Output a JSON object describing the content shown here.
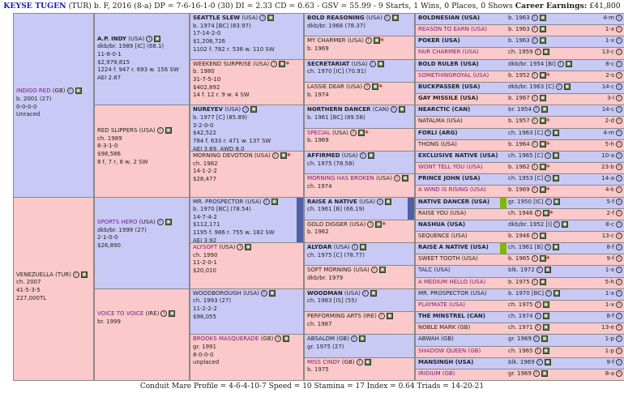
{
  "header": {
    "name": "KEYSE TUGEN",
    "info": "(TUR) b. F, 2016 (8-a) DP = 7-6-16-1-0 (30) DI = 2.33   CD = 0.63 - GSV = 55.99 - 9 Starts, 1 Wins, 0 Places, 0 Shows",
    "earnings_label": "Career Earnings:",
    "earnings": "£41,800"
  },
  "footer": {
    "text": "Conduit Mare Profile = 4-6-4-10-7   Speed = 10   Stamina = 17   Index = 0.64   Triads = 14-20-21"
  },
  "colors": {
    "male": "#c9c9f6",
    "female": "#fbc9c9",
    "accent_green": "#7fb800",
    "accent_blue": "#4f5fa8"
  },
  "icons": [
    "info-icon",
    "chart-icon"
  ],
  "gen1": [
    {
      "name": "INDIGO RED",
      "suf": "(GB)",
      "lines": [
        "b. 2001 (27)",
        "0-0-0-0",
        "Unraced"
      ],
      "style": "ds"
    },
    {
      "name": "VENEZUELLA (TUR)",
      "suf": "",
      "lines": [
        "ch. 2007",
        "41-5-3-5",
        "227,000TL"
      ],
      "style": "plain"
    }
  ],
  "gen2": [
    {
      "name": "A.P. INDY",
      "suf": "(USA)",
      "lines": [
        "dkb/br. 1989 [IC] (68.1)",
        "11-8-0-1",
        "$2,979,815",
        "1224 f. 947 r. 693 w. 156 SW",
        "AEI 2.87"
      ],
      "style": "st"
    },
    {
      "name": "RED SLIPPERS",
      "suf": "(USA)",
      "lines": [
        "ch. 1989",
        "8-3-1-0",
        "$98,586",
        "8 f, 7 r, 6 w, 2 SW"
      ],
      "style": "plain"
    },
    {
      "name": "SPORTS HERO",
      "suf": "(USA)",
      "lines": [
        "dkb/br. 1999 (27)",
        "2-1-0-0",
        "$26,890"
      ],
      "style": "ds"
    },
    {
      "name": "VOICE TO VOICE",
      "suf": "(IRE)",
      "lines": [
        "br. 1999"
      ],
      "style": "ds"
    }
  ],
  "gen3": [
    {
      "name": "SEATTLE SLEW",
      "suf": "(USA)",
      "lines": [
        "b. 1974 [BC] (83.97)",
        "17-14-2-0",
        "$1,208,726",
        "1102 f. 782 r. 536 w. 110 SW"
      ],
      "style": "st"
    },
    {
      "name": "WEEKEND SURPRISE",
      "suf": "(USA)",
      "lines": [
        "b. 1980",
        "31-7-5-10",
        "$402,892",
        "14 f. 12 r. 9 w. 4 SW"
      ],
      "style": "plain"
    },
    {
      "name": "NUREYEV",
      "suf": "(USA)",
      "lines": [
        "b. 1977 [C] (85.89)",
        "3-2-0-0",
        "$42,522",
        "784 f. 633 r. 471 w. 137 SW",
        "AEI 3.69, AWD 8.0"
      ],
      "style": "st"
    },
    {
      "name": "MORNING DEVOTION",
      "suf": "(USA)",
      "lines": [
        "ch. 1982",
        "14-1-2-2",
        "$28,477"
      ],
      "style": "plain"
    },
    {
      "name": "MR. PROSPECTOR",
      "suf": "(USA)",
      "lines": [
        "b. 1970 [BC] (78.54)",
        "14-7-4-2",
        "$112,171",
        "1195 f. 986 r. 755 w. 182 SW",
        "AEI 3.92"
      ],
      "style": "plain"
    },
    {
      "name": "ALYSOFT",
      "suf": "(USA)",
      "lines": [
        "ch. 1990",
        "11-2-0-1",
        "$20,010"
      ],
      "style": "ds"
    },
    {
      "name": "WOODBOROUGH",
      "suf": "(USA)",
      "lines": [
        "ch. 1993 (27)",
        "11-2-2-2",
        "$98,055"
      ],
      "style": "plain"
    },
    {
      "name": "BROOKS MASQUERADE",
      "suf": "(GB)",
      "lines": [
        "gr. 1991",
        "8-0-0-0",
        "unplaced"
      ],
      "style": "ds"
    }
  ],
  "gen4": [
    {
      "name": "BOLD REASONING",
      "suf": "(USA)",
      "line": "dkb/br. 1968 (78.37)",
      "style": "st"
    },
    {
      "name": "MY CHARMER",
      "suf": "(USA)",
      "line": "b. 1969",
      "style": "plain"
    },
    {
      "name": "SECRETARIAT",
      "suf": "(USA)",
      "line": "ch. 1970 [IC] (70.91)",
      "style": "st"
    },
    {
      "name": "LASSIE DEAR",
      "suf": "(USA)",
      "line": "b. 1974",
      "style": "plain"
    },
    {
      "name": "NORTHERN DANCER",
      "suf": "(CAN)",
      "line": "b. 1961 [BC] (89.58)",
      "style": "st"
    },
    {
      "name": "SPECIAL",
      "suf": "(USA)",
      "line": "b. 1969",
      "style": "ds"
    },
    {
      "name": "AFFIRMED",
      "suf": "(USA)",
      "line": "ch. 1975 (78.58)",
      "style": "st"
    },
    {
      "name": "MORNING HAS BROKEN",
      "suf": "(USA)",
      "line": "ch. 1974",
      "style": "ds"
    },
    {
      "name": "RAISE A NATIVE",
      "suf": "(USA)",
      "line": "ch. 1961 [B] (66.19)",
      "style": "st"
    },
    {
      "name": "GOLD DIGGER",
      "suf": "(USA)",
      "line": "b. 1962",
      "style": "plain"
    },
    {
      "name": "ALYDAR",
      "suf": "(USA)",
      "line": "ch. 1975 [C] (78.77)",
      "style": "st"
    },
    {
      "name": "SOFT MORNING",
      "suf": "(USA)",
      "line": "dkb/br. 1979",
      "style": "plain"
    },
    {
      "name": "WOODMAN",
      "suf": "(USA)",
      "line": "ch. 1983 [IS] (55)",
      "style": "st"
    },
    {
      "name": "PERFORMING ARTS",
      "suf": "(IRE)",
      "line": "ch. 1987",
      "style": "plain"
    },
    {
      "name": "ABSALOM",
      "suf": "(GB)",
      "line": "gr. 1975 (27)",
      "style": "plain"
    },
    {
      "name": "MISS CINDY",
      "suf": "(GB)",
      "line": "b. 1975",
      "style": "ds"
    }
  ],
  "gen5": [
    {
      "name": "BOLDNESIAN (USA)",
      "style": "st",
      "desc": "b. 1963",
      "rec": "4-m"
    },
    {
      "name": "REASON TO EARN (USA)",
      "style": "ds",
      "desc": "b. 1963",
      "rec": "1-x"
    },
    {
      "name": "POKER (USA)",
      "style": "st",
      "desc": "b. 1963",
      "rec": "1-x"
    },
    {
      "name": "FAIR CHARMER (USA)",
      "style": "ds",
      "desc": "ch. 1959",
      "rec": "13-c"
    },
    {
      "name": "BOLD RULER (USA)",
      "style": "st",
      "desc": "dkb/br. 1954 [BI]",
      "rec": "8-c"
    },
    {
      "name": "SOMETHINGROYAL (USA)",
      "style": "ds",
      "desc": "b. 1952",
      "rec": "2-s"
    },
    {
      "name": "BUCKPASSER (USA)",
      "style": "st",
      "desc": "dkb/br. 1963 [C]",
      "rec": "14-c"
    },
    {
      "name": "GAY MISSILE (USA)",
      "style": "st",
      "desc": "b. 1967",
      "rec": "3-l"
    },
    {
      "name": "NEARCTIC (CAN)",
      "style": "st",
      "desc": "br. 1954",
      "rec": "14-c"
    },
    {
      "name": "NATALMA (USA)",
      "style": "plain",
      "desc": "b. 1957",
      "rec": "2-d"
    },
    {
      "name": "FORLI (ARG)",
      "style": "st",
      "desc": "ch. 1963 [C]",
      "rec": "4-m"
    },
    {
      "name": "THONG (USA)",
      "style": "plain",
      "desc": "b. 1964",
      "rec": "5-h"
    },
    {
      "name": "EXCLUSIVE NATIVE (USA)",
      "style": "st",
      "desc": "ch. 1965 [C]",
      "rec": "10-a"
    },
    {
      "name": "WONT TELL YOU (USA)",
      "style": "ds",
      "desc": "b. 1962",
      "rec": "23-b"
    },
    {
      "name": "PRINCE JOHN (USA)",
      "style": "st",
      "desc": "ch. 1953 [C]",
      "rec": "14-a"
    },
    {
      "name": "A WIND IS RISING (USA)",
      "style": "ds",
      "desc": "b. 1969",
      "rec": "4-k"
    },
    {
      "name": "NATIVE DANCER (USA)",
      "style": "st",
      "desc": "gr. 1950 [IC]",
      "rec": "5-f"
    },
    {
      "name": "RAISE YOU (USA)",
      "style": "plain",
      "desc": "ch. 1946",
      "rec": "2-f"
    },
    {
      "name": "NASHUA (USA)",
      "style": "st",
      "desc": "dkb/br. 1952 [I]",
      "rec": "8-c"
    },
    {
      "name": "SEQUENCE (USA)",
      "style": "plain",
      "desc": "b. 1946",
      "rec": "13-c"
    },
    {
      "name": "RAISE A NATIVE (USA)",
      "style": "st",
      "desc": "ch. 1961 [B]",
      "rec": "8-f"
    },
    {
      "name": "SWEET TOOTH (USA)",
      "style": "plain",
      "desc": "b. 1965",
      "rec": "9-f"
    },
    {
      "name": "TALC (USA)",
      "style": "plain",
      "desc": "blk. 1972",
      "rec": "1-x"
    },
    {
      "name": "A MEDIUM HELLO (USA)",
      "style": "ds",
      "desc": "b. 1975",
      "rec": "5-h"
    },
    {
      "name": "MR. PROSPECTOR (USA)",
      "style": "plain",
      "desc": "b. 1970 [BC]",
      "rec": "1-x"
    },
    {
      "name": "PLAYMATE (USA)",
      "style": "ds",
      "desc": "ch. 1975",
      "rec": "1-x"
    },
    {
      "name": "THE MINSTREL (CAN)",
      "style": "st",
      "desc": "ch. 1974",
      "rec": "8-f"
    },
    {
      "name": "NOBLE MARK (GB)",
      "style": "plain",
      "desc": "ch. 1971",
      "rec": "13-e"
    },
    {
      "name": "ABWAH (GB)",
      "style": "plain",
      "desc": "gr. 1969",
      "rec": "1-p"
    },
    {
      "name": "SHADOW QUEEN (GB)",
      "style": "ds",
      "desc": "ch. 1965",
      "rec": "1-p"
    },
    {
      "name": "MANSINGH (USA)",
      "style": "st",
      "desc": "blk. 1969",
      "rec": "9-f"
    },
    {
      "name": "IRIDIUM (GB)",
      "style": "ds",
      "desc": "gr. 1969",
      "rec": "8-a"
    }
  ]
}
